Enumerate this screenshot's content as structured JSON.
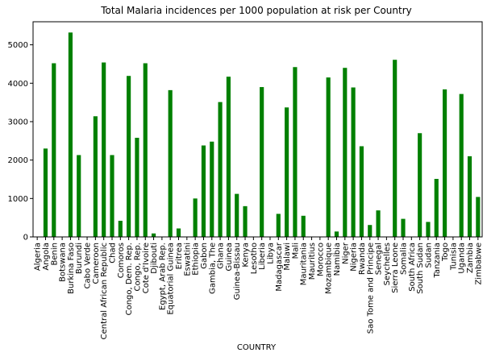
{
  "chart_data": {
    "type": "bar",
    "title": "Total Malaria incidences per 1000 population at risk per Country",
    "xlabel": "COUNTRY",
    "ylabel": "",
    "ylim": [
      0,
      5600
    ],
    "yticks": [
      0,
      1000,
      2000,
      3000,
      4000,
      5000
    ],
    "bar_color": "#008000",
    "grid": false,
    "categories": [
      "Algeria",
      "Angola",
      "Benin",
      "Botswana",
      "Burkina Faso",
      "Burundi",
      "Cabo Verde",
      "Cameroon",
      "Central African Republic",
      "Chad",
      "Comoros",
      "Congo, Dem. Rep.",
      "Congo, Rep.",
      "Cote d'Ivoire",
      "Djibouti",
      "Egypt, Arab Rep.",
      "Equatorial Guinea",
      "Eritrea",
      "Eswatini",
      "Ethiopia",
      "Gabon",
      "Gambia, The",
      "Ghana",
      "Guinea",
      "Guinea-Bissau",
      "Kenya",
      "Lesotho",
      "Liberia",
      "Libya",
      "Madagascar",
      "Malawi",
      "Mali",
      "Mauritania",
      "Mauritius",
      "Morocco",
      "Mozambique",
      "Namibia",
      "Niger",
      "Nigeria",
      "Rwanda",
      "Sao Tome and Principe",
      "Senegal",
      "Seychelles",
      "Sierra Leone",
      "Somalia",
      "South Africa",
      "South Sudan",
      "Sudan",
      "Tanzania",
      "Togo",
      "Tunisia",
      "Uganda",
      "Zambia",
      "Zimbabwe"
    ],
    "values": [
      0,
      2300,
      4520,
      0,
      5320,
      2130,
      0,
      3140,
      4540,
      2130,
      420,
      4190,
      2580,
      4520,
      90,
      0,
      3820,
      220,
      0,
      1000,
      2380,
      2480,
      3510,
      4170,
      1120,
      800,
      0,
      3900,
      0,
      600,
      3370,
      4420,
      550,
      0,
      0,
      4150,
      140,
      4400,
      3890,
      2360,
      310,
      690,
      0,
      4610,
      470,
      0,
      2700,
      390,
      1510,
      3840,
      0,
      3720,
      2100,
      1040
    ]
  }
}
